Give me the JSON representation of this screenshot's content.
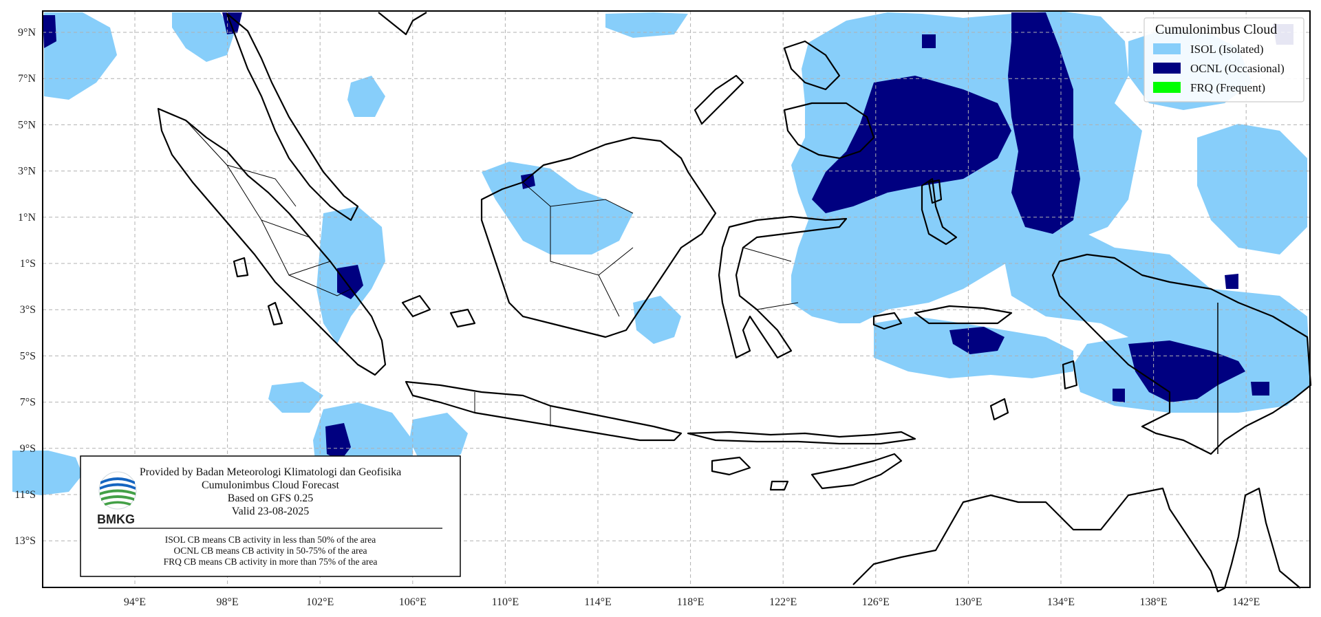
{
  "map": {
    "lon_labels": [
      "94°E",
      "98°E",
      "102°E",
      "106°E",
      "110°E",
      "114°E",
      "118°E",
      "122°E",
      "126°E",
      "130°E",
      "134°E",
      "138°E",
      "142°E"
    ],
    "lat_labels": [
      "9°N",
      "7°N",
      "5°N",
      "3°N",
      "1°N",
      "1°S",
      "3°S",
      "5°S",
      "7°S",
      "9°S",
      "11°S",
      "13°S"
    ]
  },
  "legend": {
    "title": "Cumulonimbus Cloud",
    "items": [
      {
        "label": "ISOL (Isolated)",
        "color": "#87cefa"
      },
      {
        "label": "OCNL (Occasional)",
        "color": "#000080"
      },
      {
        "label": "FRQ (Frequent)",
        "color": "#00ff00"
      }
    ]
  },
  "info": {
    "provider": "Provided by Badan Meteorologi Klimatologi dan Geofisika",
    "product": "Cumulonimbus Cloud Forecast",
    "model": "Based on GFS 0.25",
    "valid": "Valid 23-08-2025",
    "logo_text": "BMKG",
    "notes": [
      "ISOL CB means CB activity in less than 50% of the area",
      "OCNL CB means CB activity in 50-75% of the area",
      "FRQ CB means CB activity in more than 75% of the area"
    ]
  },
  "colors": {
    "isol": "#87cefa",
    "ocnl": "#000080",
    "frq": "#00ff00",
    "coast": "#000000",
    "grid": "#b0b0b0"
  }
}
